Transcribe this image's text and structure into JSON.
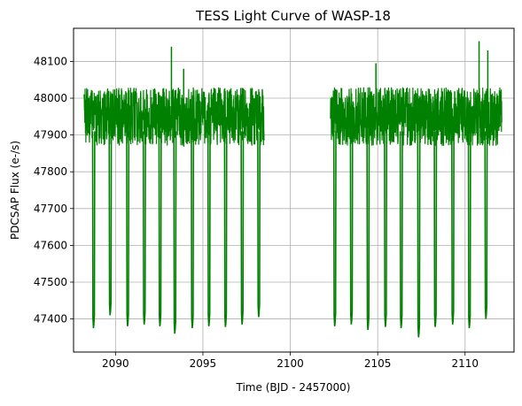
{
  "chart_data": {
    "type": "line",
    "title": "TESS Light Curve of WASP-18",
    "xlabel": "Time (BJD - 2457000)",
    "ylabel": "PDCSAP Flux (e-/s)",
    "xlim": [
      2087.6,
      2112.8
    ],
    "ylim": [
      47310,
      48190
    ],
    "xticks": [
      2090,
      2095,
      2100,
      2105,
      2110
    ],
    "yticks": [
      47400,
      47500,
      47600,
      47700,
      47800,
      47900,
      48000,
      48100
    ],
    "grid": true,
    "line_color": "#008000",
    "series": [
      {
        "segments": [
          {
            "x_start": 2088.2,
            "x_end": 2098.5
          },
          {
            "x_start": 2102.3,
            "x_end": 2112.1
          }
        ],
        "baseline": 47950,
        "noise_band": [
          47870,
          48030
        ],
        "spikes": [
          {
            "x": 2093.2,
            "y": 48140
          },
          {
            "x": 2093.9,
            "y": 48080
          },
          {
            "x": 2104.9,
            "y": 48095
          },
          {
            "x": 2110.8,
            "y": 48155
          },
          {
            "x": 2111.3,
            "y": 48130
          }
        ],
        "transits": [
          {
            "x": 2088.75,
            "y": 47375
          },
          {
            "x": 2089.7,
            "y": 47410
          },
          {
            "x": 2090.7,
            "y": 47380
          },
          {
            "x": 2091.65,
            "y": 47385
          },
          {
            "x": 2092.55,
            "y": 47380
          },
          {
            "x": 2093.4,
            "y": 47360
          },
          {
            "x": 2094.4,
            "y": 47375
          },
          {
            "x": 2095.35,
            "y": 47380
          },
          {
            "x": 2096.3,
            "y": 47378
          },
          {
            "x": 2097.25,
            "y": 47385
          },
          {
            "x": 2098.2,
            "y": 47405
          },
          {
            "x": 2102.55,
            "y": 47380
          },
          {
            "x": 2103.5,
            "y": 47385
          },
          {
            "x": 2104.45,
            "y": 47370
          },
          {
            "x": 2105.45,
            "y": 47378
          },
          {
            "x": 2106.35,
            "y": 47375
          },
          {
            "x": 2107.35,
            "y": 47350
          },
          {
            "x": 2108.3,
            "y": 47378
          },
          {
            "x": 2109.3,
            "y": 47385
          },
          {
            "x": 2110.25,
            "y": 47375
          },
          {
            "x": 2111.2,
            "y": 47400
          }
        ]
      }
    ]
  }
}
